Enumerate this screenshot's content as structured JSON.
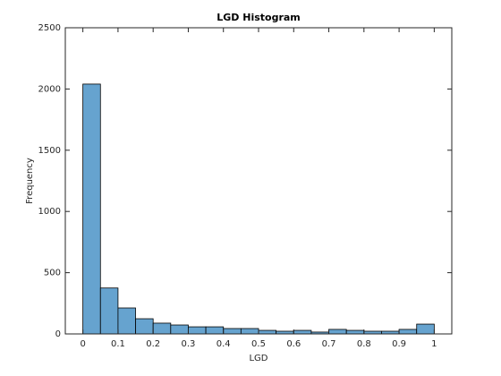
{
  "chart_data": {
    "type": "histogram",
    "title": "LGD Histogram",
    "x_label": "LGD",
    "y_label": "Frequency",
    "bins": [
      0,
      0.05,
      0.1,
      0.15,
      0.2,
      0.25,
      0.3,
      0.35,
      0.4,
      0.45,
      0.5,
      0.55,
      0.6,
      0.65,
      0.7,
      0.75,
      0.8,
      0.85,
      0.9,
      0.95,
      1
    ],
    "values": [
      2040,
      375,
      212,
      124,
      88,
      73,
      58,
      58,
      44,
      44,
      29,
      22,
      29,
      15,
      37,
      29,
      22,
      22,
      37,
      80
    ],
    "color": "#66a3cf",
    "xlim": [
      -0.05,
      1.05
    ],
    "xticks": [
      0,
      0.1,
      0.2,
      0.3,
      0.4,
      0.5,
      0.6,
      0.7,
      0.8,
      0.9,
      1
    ],
    "ylim": [
      0,
      2500
    ],
    "yticks": [
      0,
      500,
      1000,
      1500,
      2000,
      2500
    ]
  }
}
